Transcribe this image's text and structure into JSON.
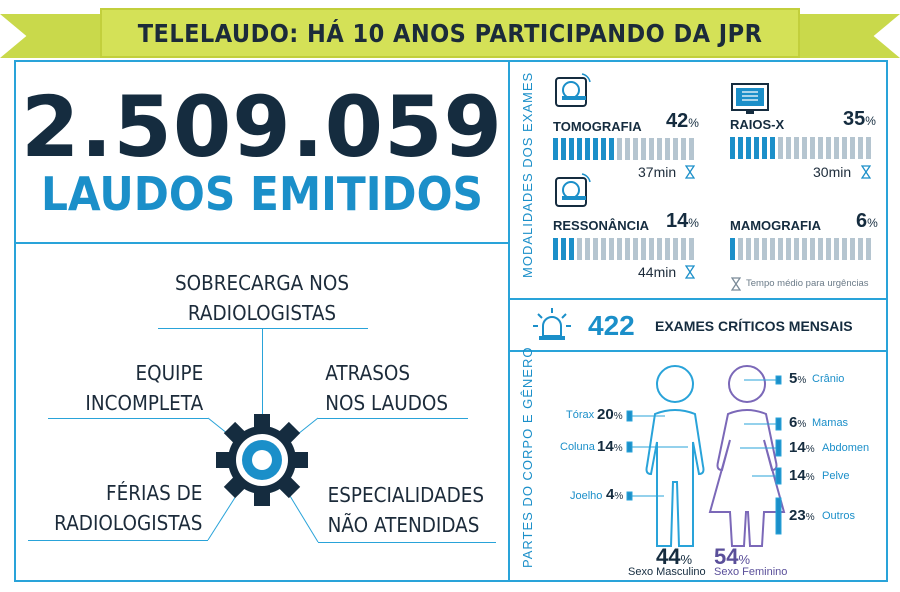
{
  "header": {
    "title": "TELELAUDO: HÁ 10 ANOS PARTICIPANDO DA JPR"
  },
  "summary": {
    "number": "2.509.059",
    "label": "LAUDOS EMITIDOS"
  },
  "challenges": {
    "top": [
      "SOBRECARGA NOS",
      "RADIOLOGISTAS"
    ],
    "left_upper": [
      "EQUIPE",
      "INCOMPLETA"
    ],
    "right_upper": [
      "ATRASOS",
      "NOS LAUDOS"
    ],
    "left_lower": [
      "FÉRIAS DE",
      "RADIOLOGISTAS"
    ],
    "right_lower": [
      "ESPECIALIDADES",
      "NÃO ATENDIDAS"
    ]
  },
  "modalities": {
    "section_label": "MODALIDADES DOS EXAMES",
    "items": [
      {
        "name": "TOMOGRAFIA",
        "pct": "42",
        "unit": "%",
        "time": "37min",
        "fraction": 0.42,
        "icon": "ct-scanner-icon"
      },
      {
        "name": "RAIOS-X",
        "pct": "35",
        "unit": "%",
        "time": "30min",
        "fraction": 0.35,
        "icon": "xray-icon"
      },
      {
        "name": "RESSONÂNCIA",
        "pct": "14",
        "unit": "%",
        "time": "44min",
        "fraction": 0.14,
        "icon": "mri-scanner-icon"
      },
      {
        "name": "MAMOGRAFIA",
        "pct": "6",
        "unit": "%",
        "time": "",
        "fraction": 0.06,
        "icon": ""
      }
    ],
    "legend": "Tempo médio para urgências"
  },
  "critical": {
    "number": "422",
    "label": "EXAMES CRÍTICOS MENSAIS",
    "icon": "alarm-light-icon"
  },
  "body_parts": {
    "section_label": "PARTES DO CORPO E GÊNERO",
    "left": [
      {
        "name": "Tórax",
        "pct": "20"
      },
      {
        "name": "Coluna",
        "pct": "14"
      },
      {
        "name": "Joelho",
        "pct": "4"
      }
    ],
    "right": [
      {
        "name": "Crânio",
        "pct": "5"
      },
      {
        "name": "Mamas",
        "pct": "6"
      },
      {
        "name": "Abdomen",
        "pct": "14"
      },
      {
        "name": "Pelve",
        "pct": "14"
      },
      {
        "name": "Outros",
        "pct": "23"
      }
    ],
    "unit": "%",
    "male": {
      "pct": "44",
      "label": "Sexo Masculino",
      "color": "#152c3f"
    },
    "female": {
      "pct": "54",
      "label": "Sexo Feminino",
      "color": "#5a4f9a"
    }
  },
  "colors": {
    "accent": "#1b8fc9",
    "banner": "#d4e157",
    "dark": "#152c3f",
    "line": "#29a3d9",
    "inactive_bar": "#b5c5d0"
  }
}
